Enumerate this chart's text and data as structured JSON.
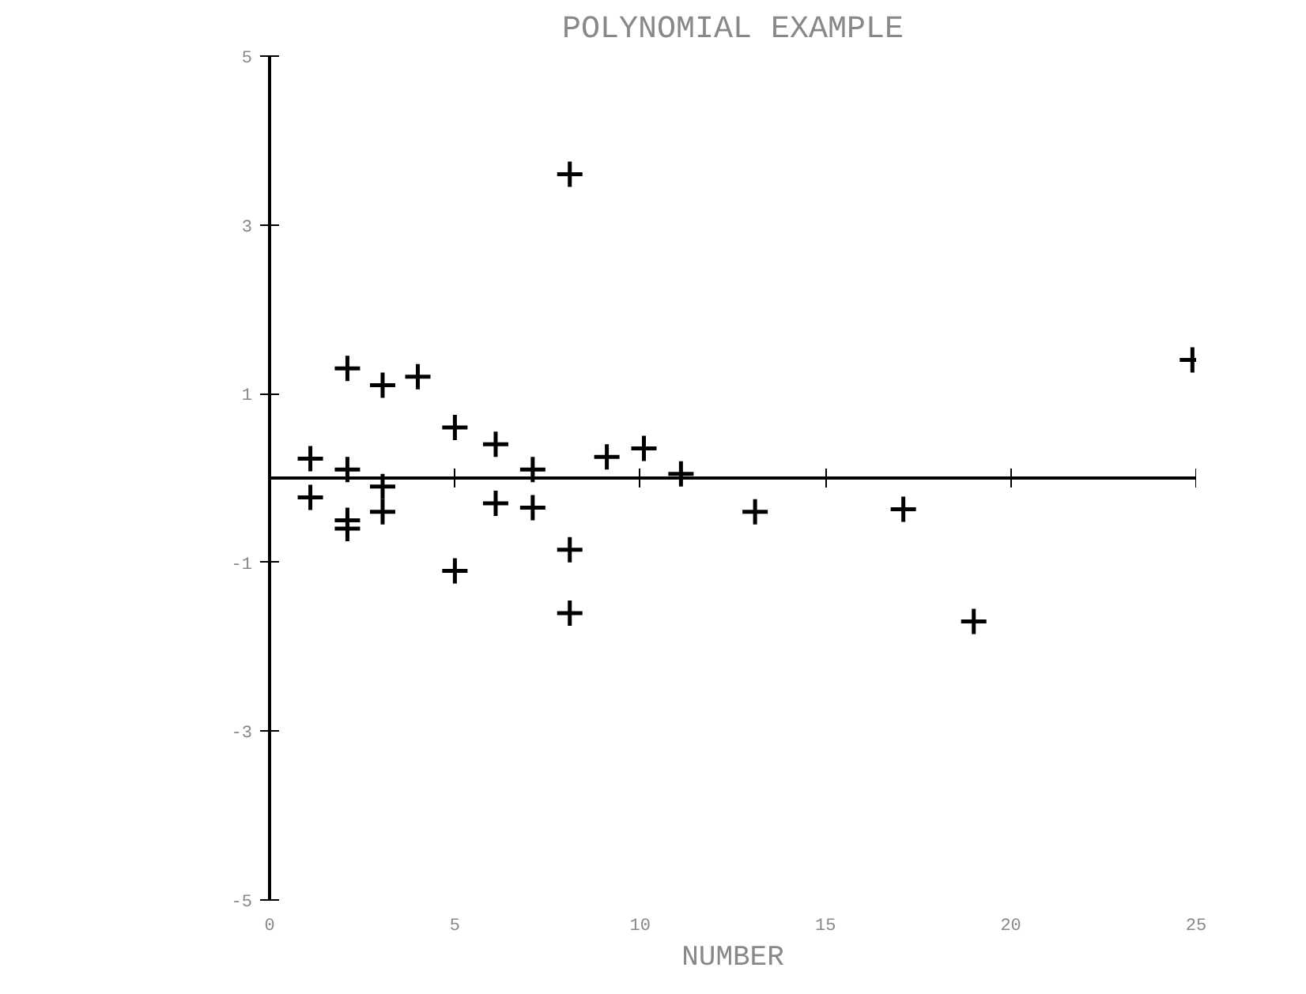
{
  "chart_data": {
    "type": "scatter",
    "title": "POLYNOMIAL EXAMPLE",
    "xlabel": "NUMBER",
    "xlim": [
      0,
      25
    ],
    "xticks": [
      0,
      5,
      10,
      15,
      20,
      25
    ],
    "ylim": [
      -5,
      5
    ],
    "yticks": [
      -5,
      -3,
      -1,
      1,
      3,
      5
    ],
    "marker": "cross",
    "grid": false,
    "series": [
      {
        "color": "#000000",
        "x": [
          1.1,
          1.1,
          2.1,
          2.1,
          2.1,
          2.1,
          3.05,
          3.05,
          3.05,
          4.0,
          5.0,
          5.0,
          6.1,
          6.1,
          7.1,
          7.1,
          8.1,
          8.1,
          8.1,
          9.1,
          10.1,
          11.1,
          13.1,
          17.1,
          19.0,
          24.9
        ],
        "values": [
          0.23,
          -0.23,
          1.3,
          0.1,
          -0.5,
          -0.6,
          1.1,
          -0.1,
          -0.4,
          1.2,
          0.6,
          -1.1,
          0.4,
          -0.3,
          0.1,
          -0.35,
          3.6,
          -0.85,
          -1.6,
          0.25,
          0.35,
          0.05,
          -0.4,
          -0.37,
          -1.7,
          1.4
        ]
      }
    ]
  }
}
